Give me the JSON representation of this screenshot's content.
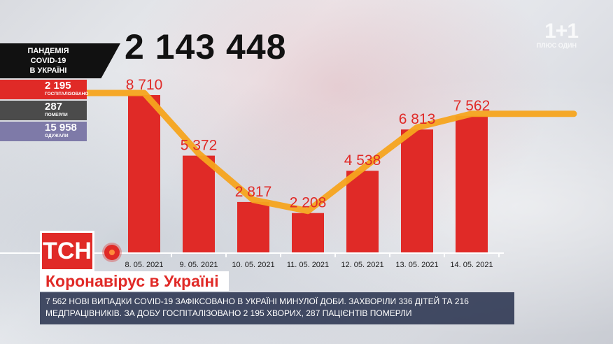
{
  "total_cases": "2 143 448",
  "stats_panel": {
    "header_lines": [
      "ПАНДЕМІЯ",
      "COVID-19",
      "В УКРАЇНІ"
    ],
    "rows": [
      {
        "value": "2 195",
        "label": "ГОСПІТАЛІЗОВАНО",
        "color": "#e02a27"
      },
      {
        "value": "287",
        "label": "ПОМЕРЛИ",
        "color": "#4b4b4b"
      },
      {
        "value": "15 958",
        "label": "ОДУЖАЛИ",
        "color": "#7e7aa8"
      }
    ]
  },
  "watermark": {
    "logo": "1+1",
    "sub": "ПЛЮС ОДИН"
  },
  "channel_logo": "ТСН",
  "headline": "Коронавірус в Україні",
  "ticker": "7 562 НОВІ ВИПАДКИ COVID-19 ЗАФІКСОВАНО В УКРАЇНІ МИНУЛОЇ ДОБИ. ЗАХВОРІЛИ 336 ДІТЕЙ ТА 216 МЕДПРАЦІВНИКІВ. ЗА ДОБУ ГОСПІТАЛІЗОВАНО 2 195 ХВОРИХ, 287 ПАЦІЄНТІВ ПОМЕРЛИ",
  "colors": {
    "bar": "#e02a27",
    "trend": "#f5a41e",
    "label": "#e02a27"
  },
  "chart_data": {
    "type": "bar",
    "categories": [
      "8. 05. 2021",
      "9. 05. 2021",
      "10. 05. 2021",
      "11. 05. 2021",
      "12. 05. 2021",
      "13. 05. 2021",
      "14. 05. 2021"
    ],
    "values": [
      8710,
      5372,
      2817,
      2208,
      4538,
      6813,
      7562
    ],
    "value_labels": [
      "8 710",
      "5 372",
      "2 817",
      "2 208",
      "4 538",
      "6 813",
      "7 562"
    ],
    "trend_line": true,
    "grid": false
  }
}
